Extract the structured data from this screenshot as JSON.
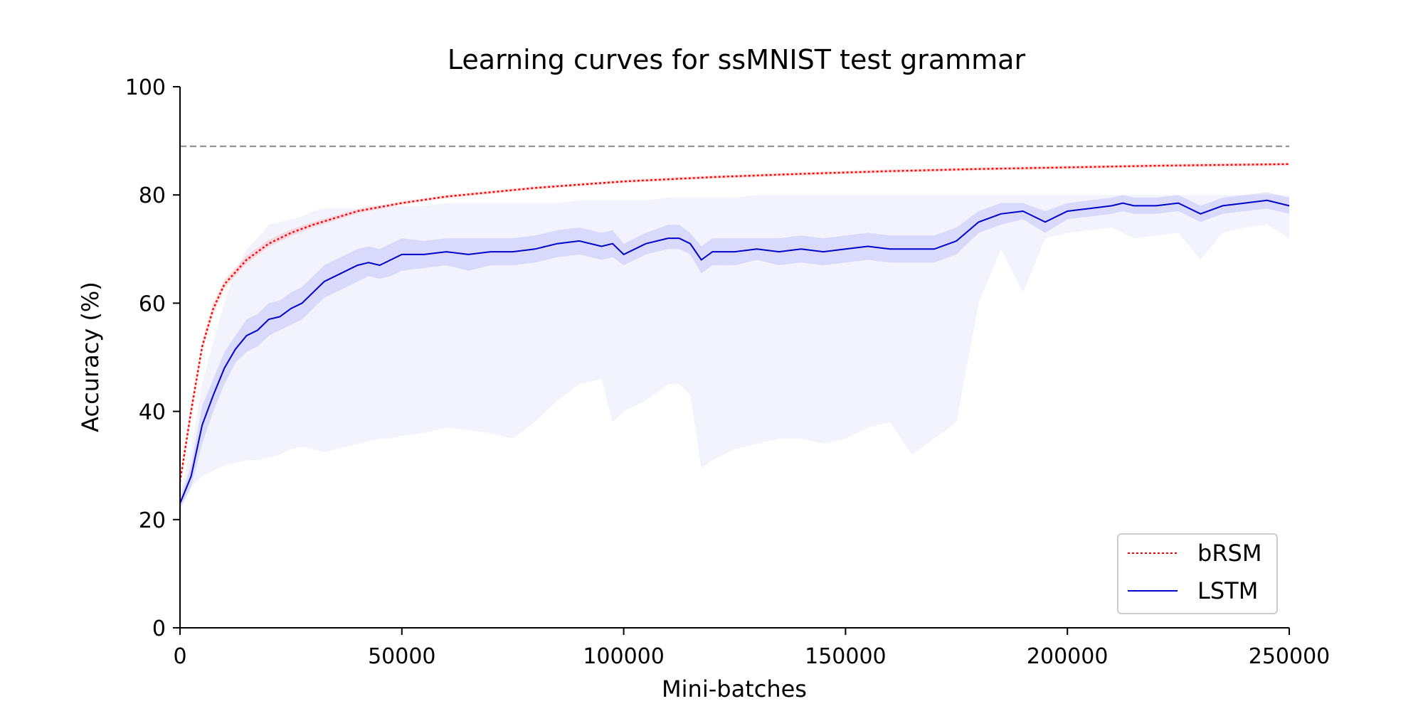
{
  "chart_data": {
    "type": "line",
    "title": "Learning curves for ssMNIST test grammar",
    "xlabel": "Mini-batches",
    "ylabel": "Accuracy (%)",
    "xlim": [
      0,
      250000
    ],
    "ylim": [
      0,
      100
    ],
    "xticks": [
      "0",
      "50000",
      "100000",
      "150000",
      "200000",
      "250000"
    ],
    "yticks": [
      "0",
      "20",
      "40",
      "60",
      "80",
      "100"
    ],
    "grid": false,
    "legend_position": "bottom-right",
    "reference_line": {
      "y": 89,
      "style": "dashed",
      "color": "#888888"
    },
    "series": [
      {
        "name": "bRSM",
        "color": "#ff0000",
        "linestyle": "dotted",
        "x": [
          0,
          2500,
          5000,
          7500,
          10000,
          15000,
          20000,
          25000,
          30000,
          40000,
          50000,
          60000,
          70000,
          80000,
          90000,
          100000,
          120000,
          140000,
          160000,
          180000,
          200000,
          220000,
          250000
        ],
        "y": [
          27,
          40,
          52,
          59,
          63.5,
          68,
          71,
          73,
          74.5,
          77,
          78.5,
          79.7,
          80.5,
          81.3,
          81.9,
          82.5,
          83.3,
          83.9,
          84.4,
          84.8,
          85.1,
          85.4,
          85.7
        ],
        "band_lower": [
          26,
          39,
          51,
          58,
          62.7,
          67.3,
          70.4,
          72.4,
          74,
          76.6,
          78.2,
          79.4,
          80.2,
          81,
          81.6,
          82.2,
          83,
          83.6,
          84.1,
          84.5,
          84.8,
          85.1,
          85.4
        ],
        "band_upper": [
          28,
          41.5,
          53,
          60,
          64.3,
          68.8,
          71.7,
          73.6,
          75,
          77.4,
          78.8,
          80,
          80.8,
          81.6,
          82.2,
          82.8,
          83.6,
          84.2,
          84.7,
          85.1,
          85.4,
          85.7,
          86
        ]
      },
      {
        "name": "LSTM",
        "color": "#0000cc",
        "linestyle": "solid",
        "band_color": "#6666ee",
        "x": [
          0,
          2500,
          5000,
          7500,
          10000,
          12500,
          15000,
          17500,
          20000,
          22500,
          25000,
          27500,
          30000,
          32500,
          35000,
          37500,
          40000,
          42500,
          45000,
          47500,
          50000,
          55000,
          60000,
          65000,
          70000,
          75000,
          80000,
          85000,
          90000,
          95000,
          97500,
          100000,
          105000,
          110000,
          112500,
          115000,
          117500,
          120000,
          125000,
          130000,
          135000,
          140000,
          145000,
          150000,
          155000,
          160000,
          165000,
          170000,
          175000,
          180000,
          185000,
          190000,
          195000,
          200000,
          205000,
          210000,
          212500,
          215000,
          220000,
          225000,
          230000,
          235000,
          240000,
          245000,
          250000
        ],
        "y": [
          23,
          28,
          37.5,
          43,
          48,
          51.5,
          54,
          55,
          57,
          57.5,
          59,
          60,
          62,
          64,
          65,
          66,
          67,
          67.5,
          67,
          68,
          69,
          69,
          69.5,
          69,
          69.5,
          69.5,
          70,
          71,
          71.5,
          70.5,
          71,
          69,
          71,
          72,
          72,
          71,
          68,
          69.5,
          69.5,
          70,
          69.5,
          70,
          69.5,
          70,
          70.5,
          70,
          70,
          70,
          71.5,
          75,
          76.5,
          77,
          75,
          77,
          77.5,
          78,
          78.5,
          78,
          78,
          78.5,
          76.5,
          78,
          78.5,
          79,
          78
        ],
        "band_lower": [
          22,
          26,
          34,
          40,
          45,
          49,
          51,
          52,
          54,
          55,
          56,
          57,
          59,
          61,
          62,
          63,
          64,
          65,
          64.5,
          65,
          66,
          66.5,
          67,
          66,
          67,
          67,
          67.5,
          68.5,
          69,
          68,
          68.5,
          67,
          69,
          70,
          70,
          69,
          65.5,
          67,
          67,
          68,
          67,
          67.5,
          67,
          67.5,
          68,
          67.5,
          67.5,
          67.5,
          69,
          73,
          74.5,
          75.5,
          73,
          75.5,
          76,
          76.5,
          77,
          76.5,
          76.5,
          77,
          75,
          76.5,
          77,
          77.5,
          76.5
        ],
        "band_upper": [
          24,
          30,
          41,
          46,
          51,
          54,
          57,
          58,
          60,
          60.5,
          62,
          63,
          65,
          67,
          68,
          69,
          70,
          70.5,
          70,
          71,
          72,
          71.5,
          72,
          72,
          72,
          72,
          72.5,
          73.5,
          74,
          73,
          73.5,
          71,
          73,
          74.5,
          74.5,
          73,
          70.5,
          72,
          72,
          72,
          72,
          72.5,
          72,
          72.5,
          73,
          72.5,
          72.5,
          72.5,
          74,
          77,
          78.5,
          78.5,
          77,
          78.5,
          79,
          79.5,
          80,
          79.5,
          79.5,
          80,
          78,
          79.5,
          80,
          80.5,
          79.5
        ],
        "range_lower": [
          22,
          26,
          28,
          29,
          30,
          30.5,
          31,
          31,
          31.5,
          32,
          33,
          33.5,
          33,
          32.5,
          33,
          33.5,
          34,
          34.5,
          35,
          35,
          35.5,
          36,
          37,
          36.5,
          36,
          35,
          38,
          42,
          45,
          46,
          38,
          40,
          42,
          45,
          45,
          43,
          29.5,
          31,
          33,
          34,
          35,
          35,
          34,
          35,
          37,
          38,
          32,
          35,
          38,
          60,
          70,
          62,
          72,
          73,
          73.5,
          74,
          73,
          72,
          72.5,
          73,
          68,
          73,
          74,
          74.5,
          72
        ],
        "range_upper": [
          25,
          33,
          45,
          53,
          60,
          66,
          70,
          72,
          74.5,
          75,
          75.5,
          76,
          77,
          77.5,
          77.5,
          77.5,
          77.5,
          78,
          78,
          78,
          78,
          78,
          78.5,
          78.5,
          78.5,
          78.5,
          78.5,
          78.5,
          79,
          79,
          79,
          79,
          79,
          79.5,
          79.5,
          79.5,
          79.5,
          79.5,
          79.5,
          80,
          80,
          80,
          80,
          80,
          80,
          80,
          80,
          80,
          80,
          80,
          80,
          80,
          80,
          80,
          80,
          80,
          80,
          80,
          80,
          80,
          80,
          80,
          80,
          80,
          80
        ]
      }
    ]
  }
}
